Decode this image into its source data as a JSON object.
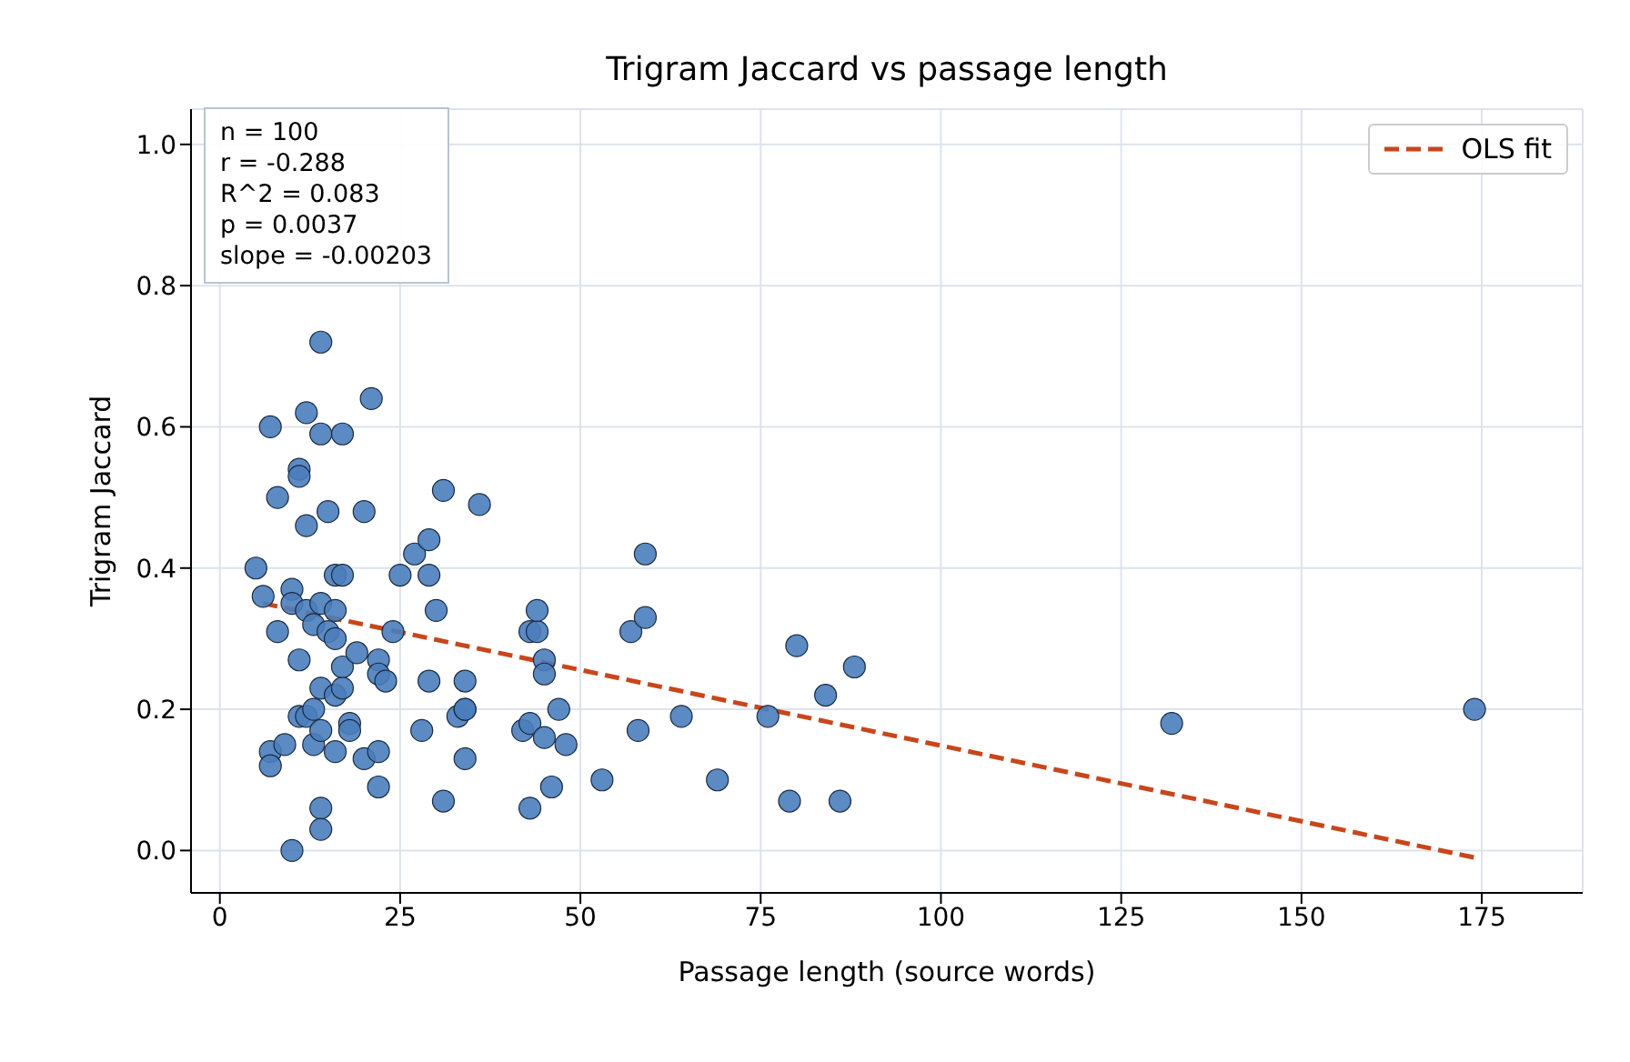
{
  "chart_data": {
    "type": "scatter",
    "title": "Trigram Jaccard vs passage length",
    "xlabel": "Passage length (source words)",
    "ylabel": "Trigram Jaccard",
    "xlim": [
      -4,
      189
    ],
    "xticks": [
      0,
      25,
      50,
      75,
      100,
      125,
      150,
      175
    ],
    "ylim": [
      -0.06,
      1.05
    ],
    "yticks": [
      {
        "value": 0,
        "label": "0.0"
      },
      {
        "value": 0.2,
        "label": "0.2"
      },
      {
        "value": 0.4,
        "label": "0.4"
      },
      {
        "value": 0.6,
        "label": "0.6"
      },
      {
        "value": 0.8,
        "label": "0.8"
      },
      {
        "value": 1,
        "label": "1.0"
      }
    ],
    "grid": true,
    "legend": "top right",
    "marker": "circle",
    "annotations": [
      "n = 100",
      "r = -0.288",
      "R^2 = 0.083",
      "p = 0.0037",
      "slope = -0.00203"
    ],
    "series": [
      {
        "color": "#4a7dbb",
        "x": [
          5,
          6,
          7,
          7,
          7,
          8,
          8,
          9,
          10,
          10,
          10,
          11,
          11,
          11,
          11,
          12,
          12,
          12,
          12,
          13,
          13,
          13,
          14,
          14,
          14,
          14,
          14,
          14,
          14,
          15,
          15,
          16,
          16,
          16,
          16,
          16,
          17,
          17,
          17,
          17,
          18,
          18,
          19,
          20,
          20,
          21,
          22,
          22,
          22,
          22,
          23,
          24,
          25,
          27,
          28,
          29,
          29,
          29,
          30,
          31,
          31,
          33,
          34,
          34,
          34,
          34,
          36,
          42,
          43,
          43,
          43,
          44,
          44,
          45,
          45,
          45,
          46,
          47,
          48,
          53,
          57,
          58,
          59,
          59,
          64,
          69,
          76,
          79,
          80,
          84,
          86,
          88,
          132,
          174
        ],
        "values": [
          0.4,
          0.36,
          0.6,
          0.14,
          0.12,
          0.5,
          0.31,
          0.15,
          0.37,
          0.0,
          0.35,
          0.54,
          0.53,
          0.27,
          0.19,
          0.62,
          0.46,
          0.34,
          0.19,
          0.32,
          0.15,
          0.2,
          0.72,
          0.59,
          0.23,
          0.17,
          0.06,
          0.03,
          0.35,
          0.48,
          0.31,
          0.34,
          0.39,
          0.3,
          0.22,
          0.14,
          0.59,
          0.39,
          0.26,
          0.23,
          0.18,
          0.17,
          0.28,
          0.48,
          0.13,
          0.64,
          0.14,
          0.09,
          0.27,
          0.25,
          0.24,
          0.31,
          0.39,
          0.42,
          0.17,
          0.44,
          0.39,
          0.24,
          0.34,
          0.51,
          0.07,
          0.19,
          0.2,
          0.24,
          0.13,
          0.2,
          0.49,
          0.17,
          0.18,
          0.06,
          0.31,
          0.31,
          0.34,
          0.27,
          0.25,
          0.16,
          0.09,
          0.2,
          0.15,
          0.1,
          0.31,
          0.17,
          0.42,
          0.33,
          0.19,
          0.1,
          0.19,
          0.07,
          0.29,
          0.22,
          0.07,
          0.26,
          0.18,
          0.2
        ]
      },
      {
        "type": "line",
        "name": "OLS fit",
        "color": "#c8461c",
        "line_style": "dashed",
        "marker": "none",
        "x": [
          6,
          174
        ],
        "values": [
          0.35,
          -0.01
        ]
      }
    ]
  }
}
